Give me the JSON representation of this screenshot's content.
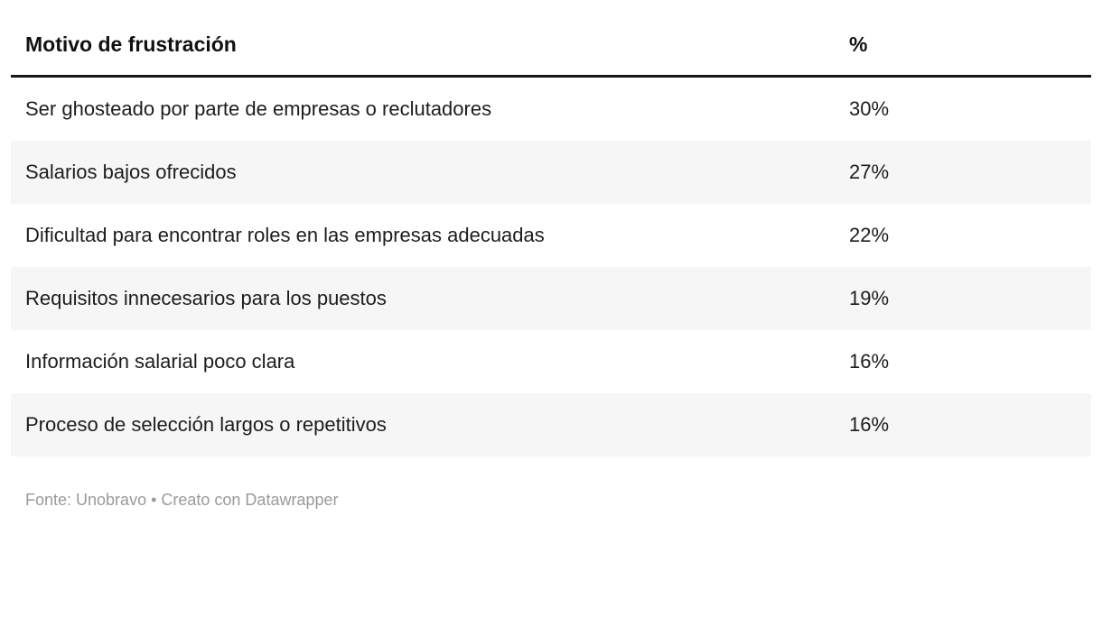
{
  "table": {
    "header": {
      "motivo": "Motivo de frustración",
      "pct": "%"
    },
    "rows": [
      {
        "motivo": "Ser ghosteado por parte de empresas o reclutadores",
        "pct": "30%"
      },
      {
        "motivo": "Salarios bajos ofrecidos",
        "pct": "27%"
      },
      {
        "motivo": "Dificultad para encontrar roles en las empresas adecuadas",
        "pct": "22%"
      },
      {
        "motivo": "Requisitos innecesarios para los puestos",
        "pct": "19%"
      },
      {
        "motivo": "Información salarial poco clara",
        "pct": "16%"
      },
      {
        "motivo": "Proceso de selección largos o repetitivos",
        "pct": "16%"
      }
    ]
  },
  "footer": {
    "text": "Fonte: Unobravo • Creato con Datawrapper"
  },
  "chart_data": {
    "type": "table",
    "title": "",
    "columns": [
      "Motivo de frustración",
      "%"
    ],
    "categories": [
      "Ser ghosteado por parte de empresas o reclutadores",
      "Salarios bajos ofrecidos",
      "Dificultad para encontrar roles en las empresas adecuadas",
      "Requisitos innecesarios para los puestos",
      "Información salarial poco clara",
      "Proceso de selección largos o repetitivos"
    ],
    "values": [
      30,
      27,
      22,
      19,
      16,
      16
    ],
    "rows": [
      [
        "Ser ghosteado por parte de empresas o reclutadores",
        "30%"
      ],
      [
        "Salarios bajos ofrecidos",
        "27%"
      ],
      [
        "Dificultad para encontrar roles en las empresas adecuadas",
        "22%"
      ],
      [
        "Requisitos innecesarios para los puestos",
        "19%"
      ],
      [
        "Información salarial poco clara",
        "16%"
      ],
      [
        "Proceso de selección largos o repetitivos",
        "16%"
      ]
    ],
    "source_note": "Fonte: Unobravo • Creato con Datawrapper",
    "layout": {
      "zebra_stripes": true,
      "stripe_color": "#f6f6f6",
      "header_rule_color": "#161616"
    }
  }
}
